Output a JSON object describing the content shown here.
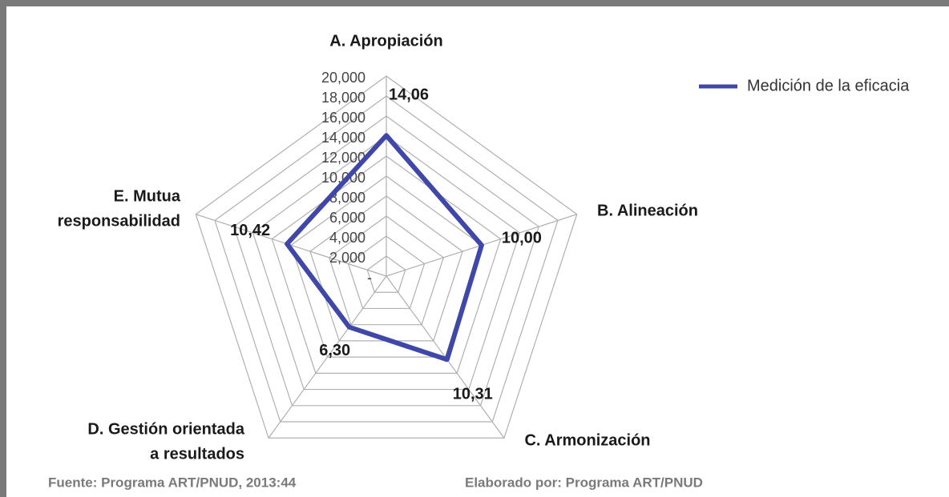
{
  "chart_data": {
    "type": "radar",
    "categories": [
      [
        "A. Apropiación"
      ],
      [
        "B. Alineación"
      ],
      [
        "C. Armonización"
      ],
      [
        "D. Gestión orientada",
        "a resultados"
      ],
      [
        "E. Mutua",
        "responsabilidad"
      ]
    ],
    "series": [
      {
        "name": "Medición de la eficacia",
        "color": "#3f48a8",
        "values": [
          14.06,
          10.0,
          10.31,
          6.3,
          10.42
        ],
        "value_labels": [
          "14,06",
          "10,00",
          "10,31",
          "6,30",
          "10,42"
        ]
      }
    ],
    "ylim": [
      0,
      20
    ],
    "yticks": [
      {
        "value": 0,
        "label": "-"
      },
      {
        "value": 2,
        "label": "2,000"
      },
      {
        "value": 4,
        "label": "4,000"
      },
      {
        "value": 6,
        "label": "6,000"
      },
      {
        "value": 8,
        "label": "8,000"
      },
      {
        "value": 10,
        "label": "10,000"
      },
      {
        "value": 12,
        "label": "12,000"
      },
      {
        "value": 14,
        "label": "14,000"
      },
      {
        "value": 16,
        "label": "16,000"
      },
      {
        "value": 18,
        "label": "18,000"
      },
      {
        "value": 20,
        "label": "20,000"
      }
    ],
    "grid": true,
    "legend": "top-right",
    "source": "Fuente: Programa ART/PNUD, 2013:44",
    "credit": "Elaborado por: Programa ART/PNUD"
  }
}
